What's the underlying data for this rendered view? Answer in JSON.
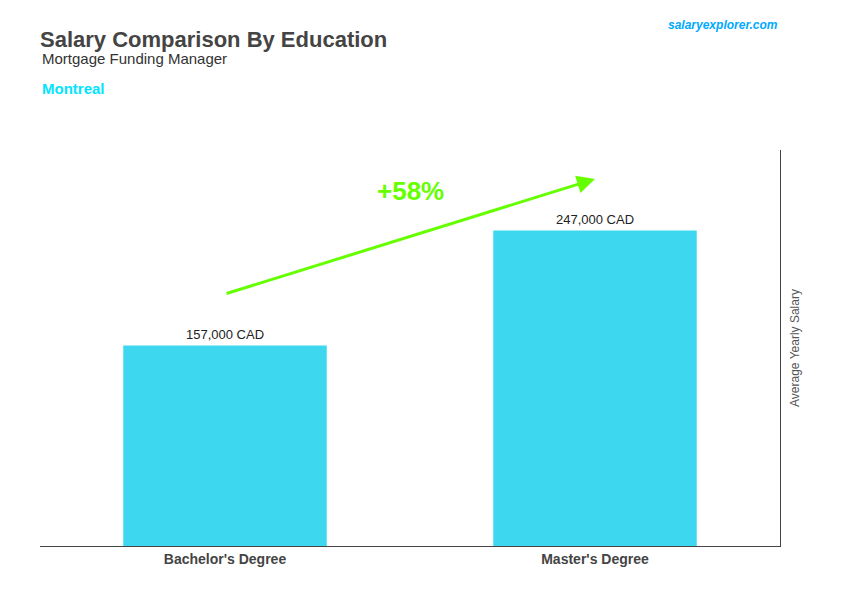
{
  "chart_data": {
    "type": "bar",
    "title": "Salary Comparison By Education",
    "subtitle": "Mortgage Funding Manager",
    "annotations": [
      {
        "text": "Montreal",
        "color": "#00e5ff"
      },
      {
        "text": "salaryexplorer.com",
        "color": "#00aaff"
      },
      {
        "text": "+58%",
        "color": "#66ff00"
      }
    ],
    "ylabel": "Average Yearly Salary",
    "categories": [
      "Bachelor's Degree",
      "Master's Degree"
    ],
    "values": [
      157000,
      247000
    ],
    "value_labels": [
      "157,000 CAD",
      "247,000 CAD"
    ],
    "data_labels": true,
    "color": "#3dd8f0",
    "ylim": [
      0,
      310000
    ],
    "yticks": [],
    "tick_labels": "x",
    "grid": false
  }
}
